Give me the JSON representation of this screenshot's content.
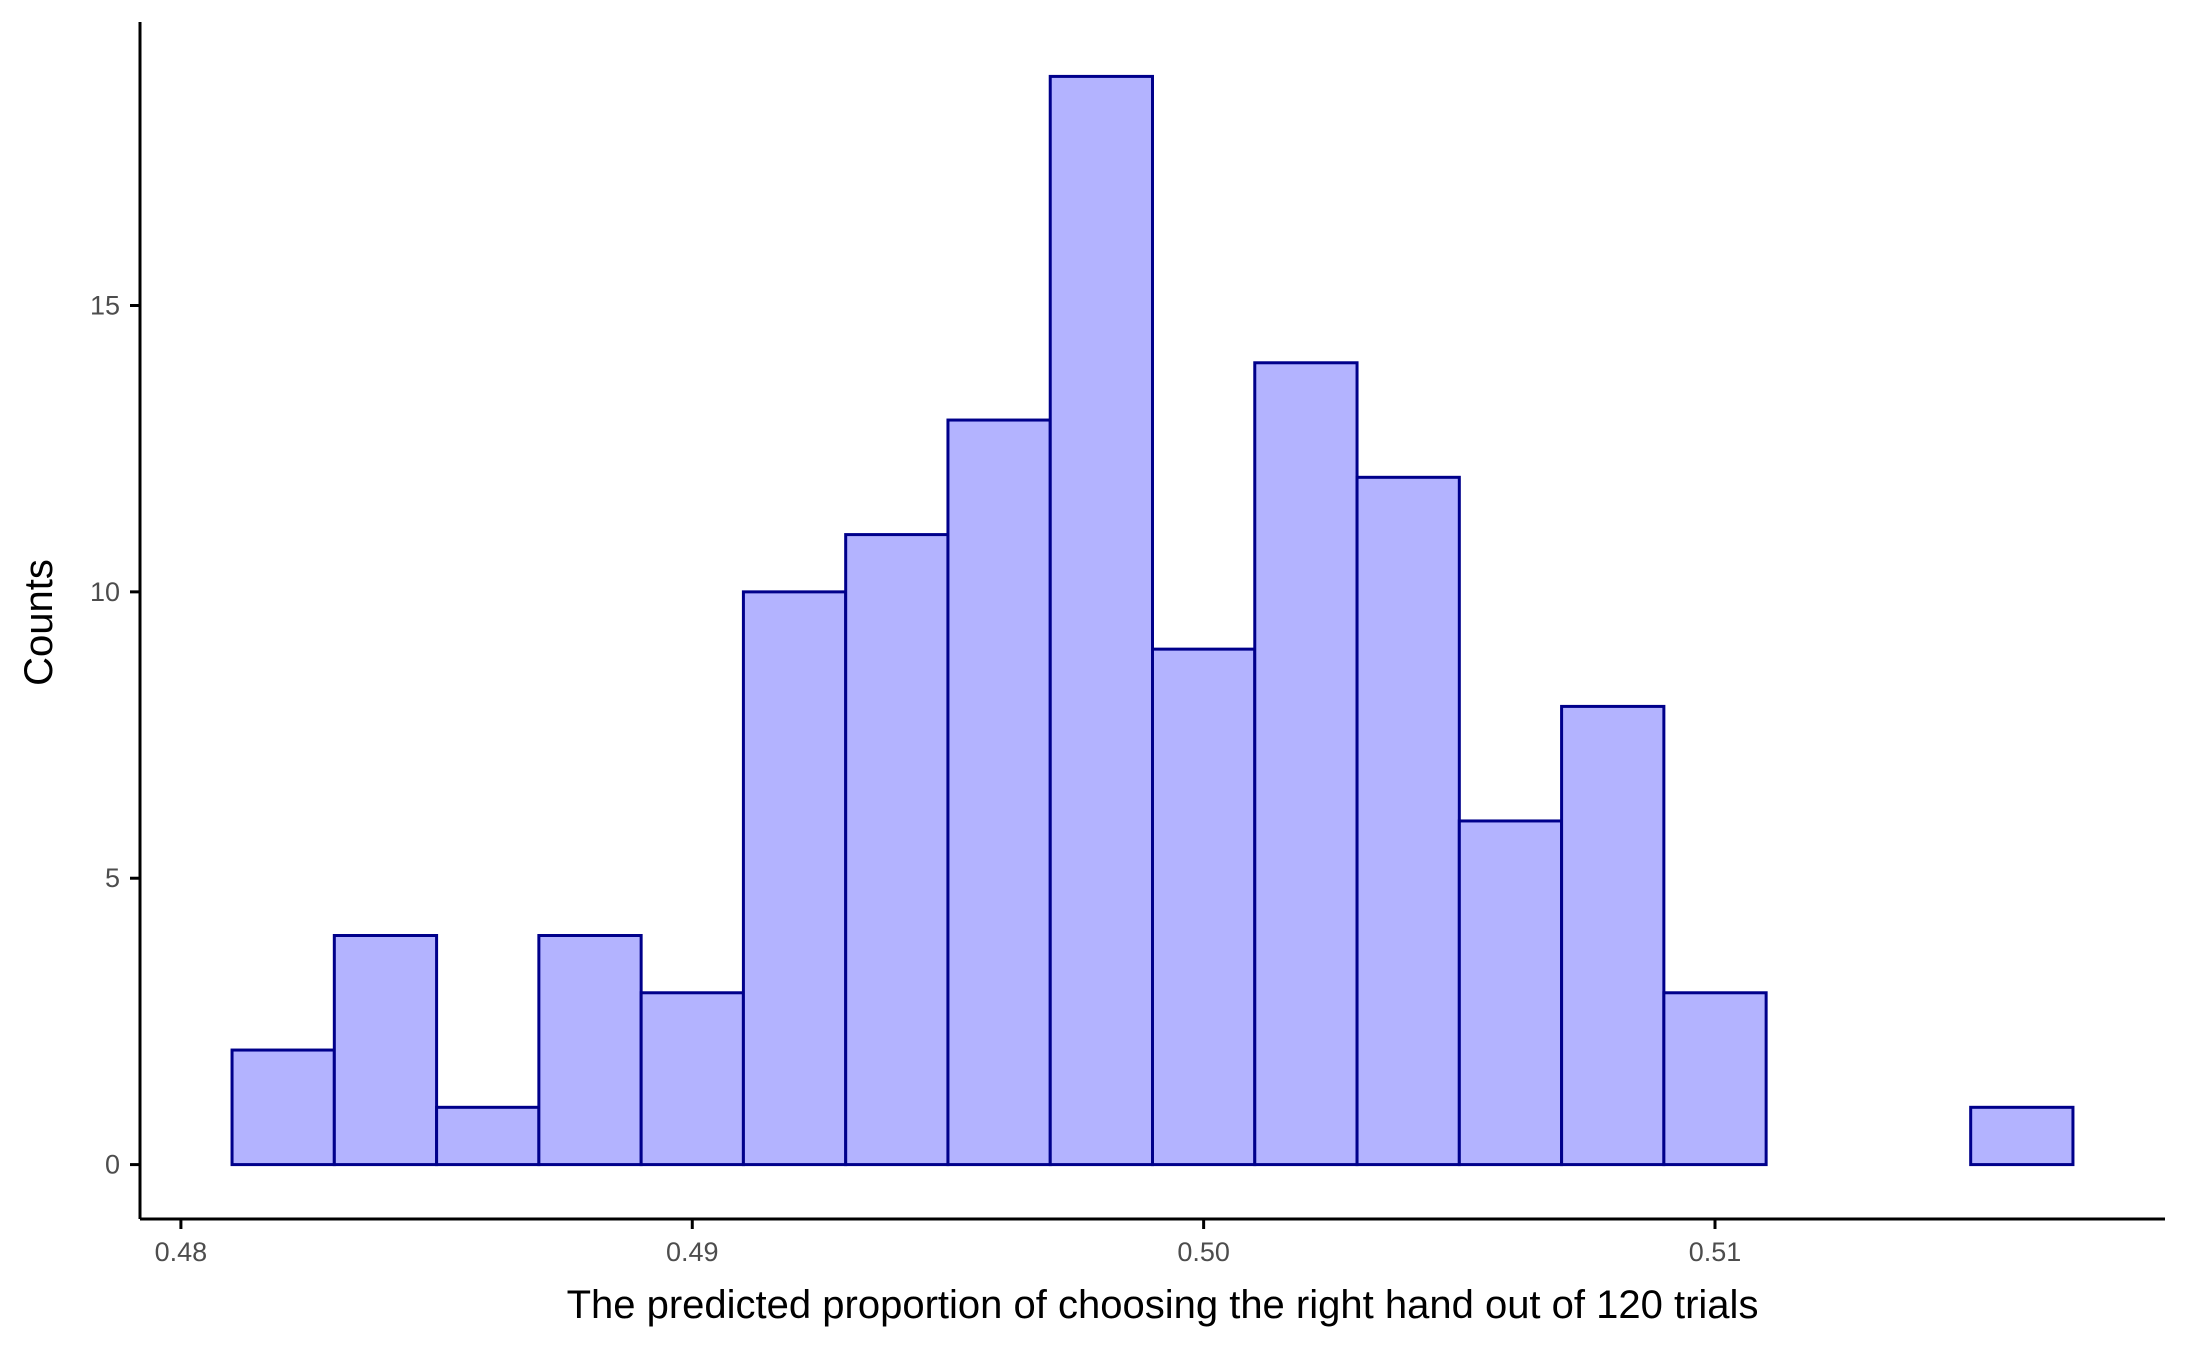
{
  "chart_data": {
    "type": "bar",
    "title": "",
    "xlabel": "The predicted proportion of choosing the right hand out of 120 trials",
    "ylabel": "Counts",
    "bin_width": 0.002,
    "bins": [
      {
        "x0": 0.481,
        "x1": 0.483,
        "count": 2
      },
      {
        "x0": 0.483,
        "x1": 0.485,
        "count": 4
      },
      {
        "x0": 0.485,
        "x1": 0.487,
        "count": 1
      },
      {
        "x0": 0.487,
        "x1": 0.489,
        "count": 4
      },
      {
        "x0": 0.489,
        "x1": 0.491,
        "count": 3
      },
      {
        "x0": 0.491,
        "x1": 0.493,
        "count": 10
      },
      {
        "x0": 0.493,
        "x1": 0.495,
        "count": 11
      },
      {
        "x0": 0.495,
        "x1": 0.497,
        "count": 13
      },
      {
        "x0": 0.497,
        "x1": 0.499,
        "count": 19
      },
      {
        "x0": 0.499,
        "x1": 0.501,
        "count": 9
      },
      {
        "x0": 0.501,
        "x1": 0.503,
        "count": 14
      },
      {
        "x0": 0.503,
        "x1": 0.505,
        "count": 12
      },
      {
        "x0": 0.505,
        "x1": 0.507,
        "count": 6
      },
      {
        "x0": 0.507,
        "x1": 0.509,
        "count": 8
      },
      {
        "x0": 0.509,
        "x1": 0.511,
        "count": 3
      },
      {
        "x0": 0.511,
        "x1": 0.513,
        "count": 0
      },
      {
        "x0": 0.513,
        "x1": 0.515,
        "count": 0
      },
      {
        "x0": 0.515,
        "x1": 0.517,
        "count": 1
      }
    ],
    "xlim": [
      0.4792,
      0.5188
    ],
    "ylim": [
      -0.95,
      19.95
    ],
    "xticks": [
      {
        "value": 0.48,
        "label": "0.48"
      },
      {
        "value": 0.49,
        "label": "0.49"
      },
      {
        "value": 0.5,
        "label": "0.50"
      },
      {
        "value": 0.51,
        "label": "0.51"
      }
    ],
    "yticks": [
      {
        "value": 0,
        "label": "0"
      },
      {
        "value": 5,
        "label": "5"
      },
      {
        "value": 10,
        "label": "10"
      },
      {
        "value": 15,
        "label": "15"
      }
    ],
    "grid": false,
    "legend": "none",
    "colors": {
      "fill": "#b3b3ff",
      "stroke": "#00008b",
      "axis": "#000000",
      "tick_text": "#4d4d4d"
    }
  }
}
